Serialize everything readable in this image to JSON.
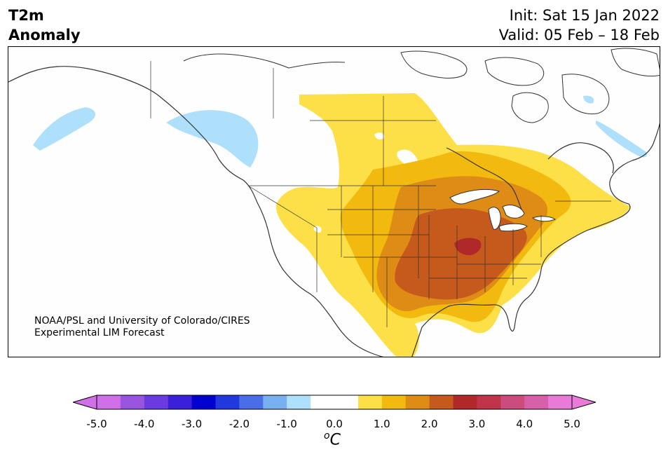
{
  "header": {
    "variable": "T2m",
    "subtitle": "Anomaly",
    "init": "Init: Sat 15 Jan 2022",
    "valid": "Valid: 05 Feb – 18 Feb"
  },
  "map": {
    "region": "North America",
    "credit_line1": "NOAA/PSL and University of Colorado/CIRES",
    "credit_line2": "Experimental LIM Forecast"
  },
  "colorbar": {
    "unit_symbol": "o",
    "unit_letter": "C",
    "ticks": [
      "-5.0",
      "-4.0",
      "-3.0",
      "-2.0",
      "-1.0",
      "0.0",
      "1.0",
      "2.0",
      "3.0",
      "4.0",
      "5.0"
    ],
    "colors": [
      "#d070e8",
      "#9955e0",
      "#6a3ce0",
      "#3a20d8",
      "#0000d0",
      "#2238dc",
      "#4a6ee8",
      "#78b0f0",
      "#aee0fc",
      "#ffffff",
      "#ffffff",
      "#fde048",
      "#f2b90e",
      "#de8c16",
      "#c65a1c",
      "#b02828",
      "#c0344a",
      "#cc4c7e",
      "#d860a8",
      "#e87ad8"
    ],
    "under_color": "#d070e8",
    "over_color": "#e87ad8"
  },
  "legend_colors": {
    "cold_light": "#aee0fc",
    "warm_05": "#fde048",
    "warm_10": "#f2b90e",
    "warm_15": "#de8c16",
    "warm_20": "#c65a1c",
    "warm_25": "#b02828"
  }
}
